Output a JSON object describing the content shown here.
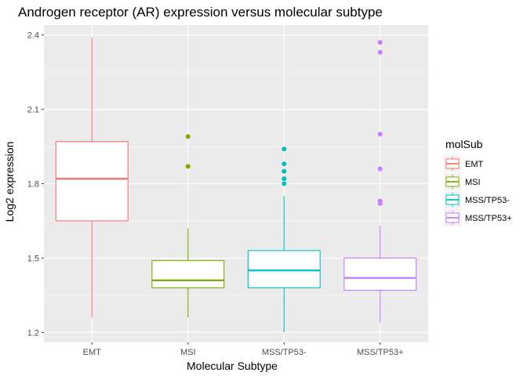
{
  "chart_data": {
    "type": "box",
    "title": "Androgen receptor (AR) expression versus molecular subtype",
    "xlabel": "Molecular Subtype",
    "ylabel": "Log2 expression",
    "ylim": [
      1.16,
      2.44
    ],
    "yticks": [
      1.2,
      1.5,
      1.8,
      2.1,
      2.4
    ],
    "ytick_labels": [
      "1.2",
      "1.5",
      "1.8",
      "2.1",
      "2.4"
    ],
    "grid": true,
    "legend": {
      "title": "molSub",
      "position": "right"
    },
    "categories": [
      "EMT",
      "MSI",
      "MSS/TP53-",
      "MSS/TP53+"
    ],
    "series": [
      {
        "name": "EMT",
        "color": "#F8766D",
        "whisker_low": 1.26,
        "q1": 1.65,
        "median": 1.82,
        "q3": 1.97,
        "whisker_high": 2.39,
        "outliers": []
      },
      {
        "name": "MSI",
        "color": "#7CAE00",
        "whisker_low": 1.26,
        "q1": 1.38,
        "median": 1.41,
        "q3": 1.49,
        "whisker_high": 1.62,
        "outliers": [
          1.87,
          1.99
        ]
      },
      {
        "name": "MSS/TP53-",
        "color": "#00BFC4",
        "whisker_low": 1.2,
        "q1": 1.38,
        "median": 1.45,
        "q3": 1.53,
        "whisker_high": 1.75,
        "outliers": [
          1.8,
          1.82,
          1.85,
          1.88,
          1.94
        ]
      },
      {
        "name": "MSS/TP53+",
        "color": "#C77CFF",
        "whisker_low": 1.24,
        "q1": 1.37,
        "median": 1.42,
        "q3": 1.5,
        "whisker_high": 1.63,
        "outliers": [
          1.72,
          1.73,
          1.86,
          2.0,
          2.33,
          2.37
        ]
      }
    ]
  }
}
